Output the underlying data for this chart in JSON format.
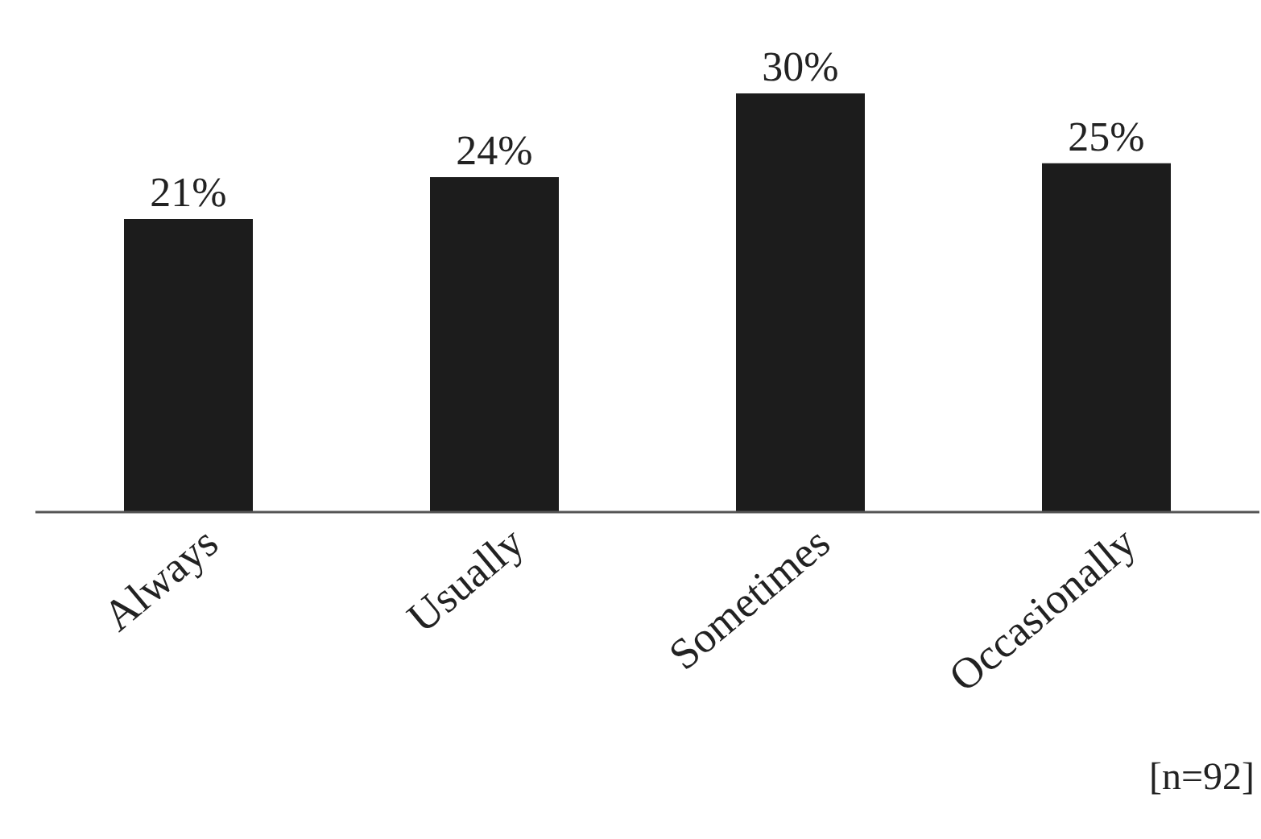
{
  "chart_data": {
    "type": "bar",
    "categories": [
      "Always",
      "Usually",
      "Sometimes",
      "Occasionally"
    ],
    "values": [
      21,
      24,
      30,
      25
    ],
    "value_labels": [
      "21%",
      "24%",
      "30%",
      "25%"
    ],
    "color": "#1c1c1c",
    "grid": false,
    "legend": false,
    "annotations": [
      "[n=92]"
    ]
  }
}
